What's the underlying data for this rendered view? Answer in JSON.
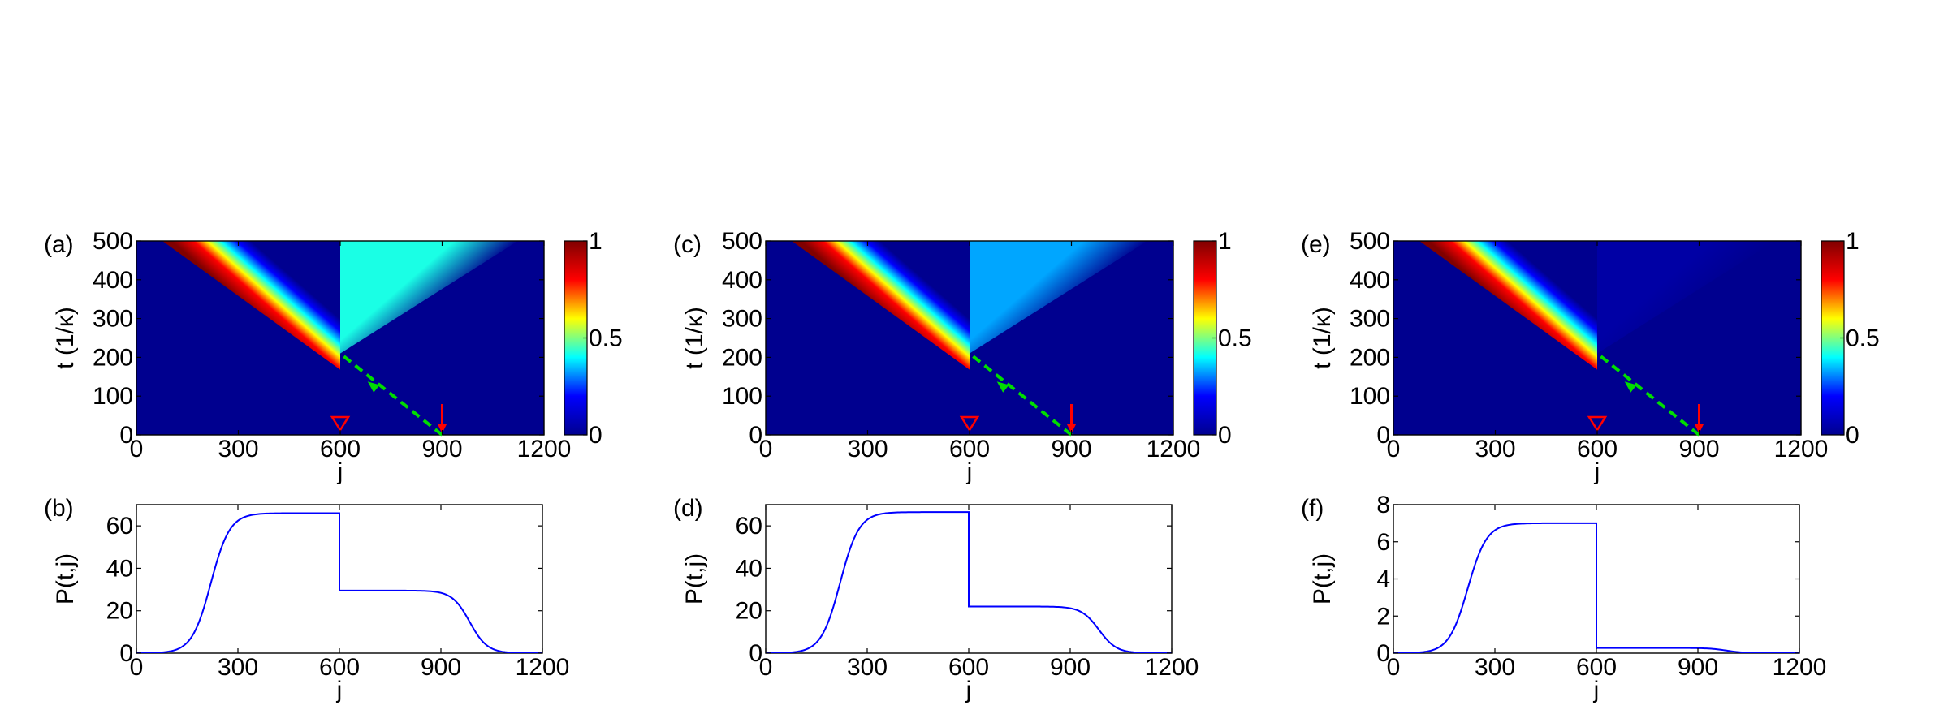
{
  "colormap": [
    "#00008f",
    "#0000ff",
    "#00ffff",
    "#ffff00",
    "#ff0000",
    "#800000"
  ],
  "colors": {
    "line": "#0000ff",
    "marker": "#ff0000",
    "arrow": "#00dd00",
    "axis": "#000000"
  },
  "chart_data": [
    {
      "type": "heatmap",
      "label": "(a)",
      "xlabel": "j",
      "ylabel": "t (1/κ)",
      "xlim": [
        0,
        1200
      ],
      "ylim": [
        0,
        500
      ],
      "xticks": [
        0,
        300,
        600,
        900,
        1200
      ],
      "yticks": [
        0,
        100,
        200,
        300,
        400,
        500
      ],
      "colorbar": {
        "ticks": [
          0,
          0.5,
          1
        ],
        "tick_labels": [
          "0",
          "0.5",
          "1"
        ]
      },
      "left_wave": {
        "value": 1.0,
        "front_start": [
          600,
          210
        ],
        "front_end": [
          220,
          500
        ]
      },
      "right_wave": {
        "value": 0.42,
        "front_end": [
          980,
          500
        ]
      },
      "markers": {
        "triangle_j": 600,
        "arrow_j": 900,
        "dashed_arrow": [
          [
            900,
            0
          ],
          [
            600,
            210
          ]
        ]
      }
    },
    {
      "type": "line",
      "label": "(b)",
      "xlabel": "j",
      "ylabel": "P(t,j)",
      "xlim": [
        0,
        1200
      ],
      "ylim": [
        0,
        70
      ],
      "xticks": [
        0,
        300,
        600,
        900,
        1200
      ],
      "yticks": [
        0,
        20,
        40,
        60
      ],
      "ytick_labels": [
        "0",
        "20",
        "40",
        "60"
      ],
      "plateau_left": 66,
      "plateau_right": 29.5,
      "rise_center": 220,
      "step_j": 600,
      "fall_center": 985
    },
    {
      "type": "heatmap",
      "label": "(c)",
      "xlabel": "j",
      "ylabel": "t (1/κ)",
      "xlim": [
        0,
        1200
      ],
      "ylim": [
        0,
        500
      ],
      "xticks": [
        0,
        300,
        600,
        900,
        1200
      ],
      "yticks": [
        0,
        100,
        200,
        300,
        400,
        500
      ],
      "colorbar": {
        "ticks": [
          0,
          0.5,
          1
        ],
        "tick_labels": [
          "0",
          "0.5",
          "1"
        ]
      },
      "left_wave": {
        "value": 1.0,
        "front_start": [
          600,
          210
        ],
        "front_end": [
          220,
          500
        ]
      },
      "right_wave": {
        "value": 0.33,
        "front_end": [
          980,
          500
        ]
      },
      "markers": {
        "triangle_j": 600,
        "arrow_j": 900,
        "dashed_arrow": [
          [
            900,
            0
          ],
          [
            600,
            210
          ]
        ]
      }
    },
    {
      "type": "line",
      "label": "(d)",
      "xlabel": "j",
      "ylabel": "P(t,j)",
      "xlim": [
        0,
        1200
      ],
      "ylim": [
        0,
        70
      ],
      "xticks": [
        0,
        300,
        600,
        900,
        1200
      ],
      "yticks": [
        0,
        20,
        40,
        60
      ],
      "ytick_labels": [
        "0",
        "20",
        "40",
        "60"
      ],
      "plateau_left": 66.5,
      "plateau_right": 22,
      "rise_center": 220,
      "step_j": 600,
      "fall_center": 985
    },
    {
      "type": "heatmap",
      "label": "(e)",
      "xlabel": "j",
      "ylabel": "t (1/κ)",
      "xlim": [
        0,
        1200
      ],
      "ylim": [
        0,
        500
      ],
      "xticks": [
        0,
        300,
        600,
        900,
        1200
      ],
      "yticks": [
        0,
        100,
        200,
        300,
        400,
        500
      ],
      "colorbar": {
        "ticks": [
          0,
          0.5,
          1
        ],
        "tick_labels": [
          "0",
          "0.5",
          "1"
        ]
      },
      "left_wave": {
        "value": 1.0,
        "front_start": [
          600,
          210
        ],
        "front_end": [
          220,
          500
        ]
      },
      "right_wave": {
        "value": 0.04,
        "front_end": [
          980,
          500
        ]
      },
      "markers": {
        "triangle_j": 600,
        "arrow_j": 900,
        "dashed_arrow": [
          [
            900,
            0
          ],
          [
            600,
            210
          ]
        ]
      }
    },
    {
      "type": "line",
      "label": "(f)",
      "xlabel": "j",
      "ylabel": "P(t,j)",
      "xlim": [
        0,
        1200
      ],
      "ylim": [
        0,
        8
      ],
      "xticks": [
        0,
        300,
        600,
        900,
        1200
      ],
      "yticks": [
        0,
        2,
        4,
        6,
        8
      ],
      "ytick_labels": [
        "0",
        "2",
        "4",
        "6",
        "8"
      ],
      "plateau_left": 7,
      "plateau_right": 0.28,
      "rise_center": 220,
      "step_j": 600,
      "fall_center": 985
    }
  ]
}
